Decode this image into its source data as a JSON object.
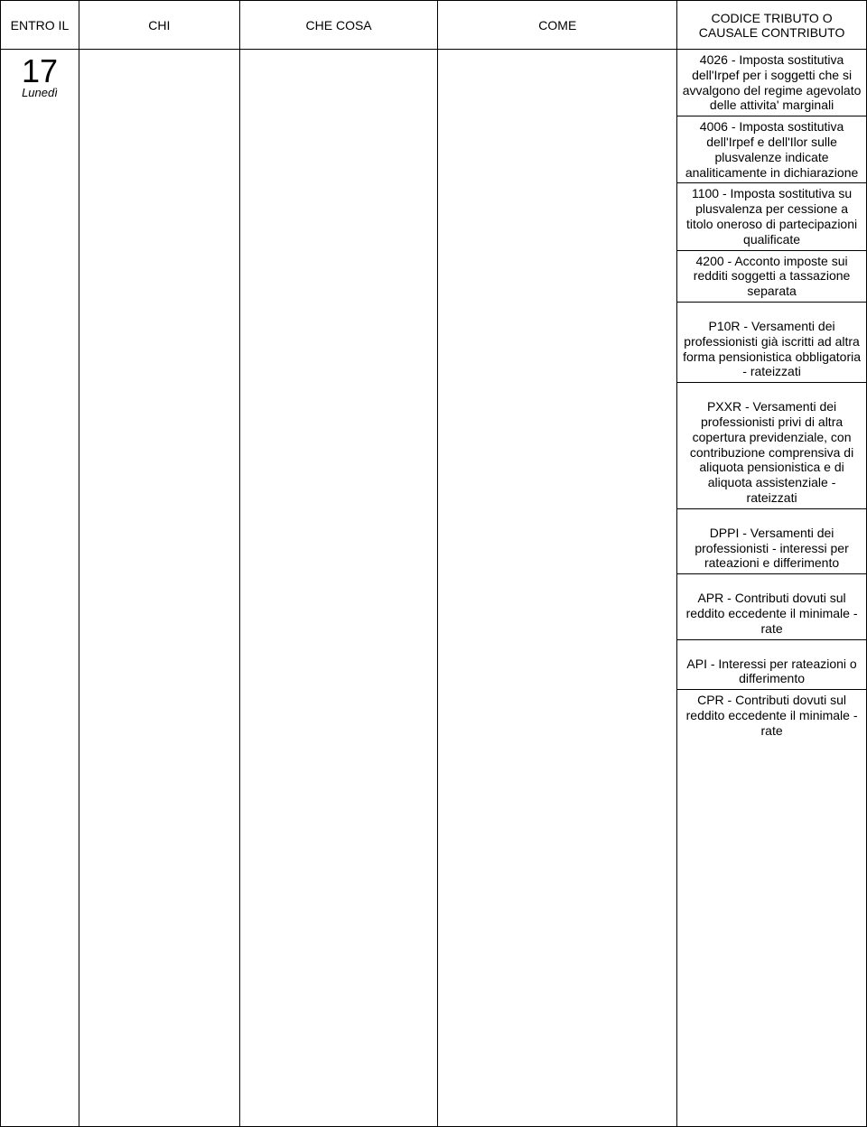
{
  "header": {
    "col1": "ENTRO IL",
    "col2": "CHI",
    "col3": "CHE COSA",
    "col4": "COME",
    "col5a": "CODICE TRIBUTO O",
    "col5b": "CAUSALE CONTRIBUTO"
  },
  "day": {
    "num": "17",
    "name": "Lunedì"
  },
  "codes": {
    "c1": "4026 - Imposta sostitutiva dell'Irpef per i soggetti che si avvalgono del regime agevolato delle attivita' marginali",
    "c2": "4006 - Imposta sostitutiva dell'Irpef e dell'Ilor sulle plusvalenze indicate analiticamente in dichiarazione",
    "c3": "1100 - Imposta sostitutiva su plusvalenza per cessione a titolo oneroso di partecipazioni qualificate",
    "c4": "4200 - Acconto imposte sui redditi soggetti a tassazione separata",
    "c5": "P10R - Versamenti dei professionisti già iscritti ad altra forma pensionistica obbligatoria - rateizzati",
    "c6": "PXXR - Versamenti dei professionisti privi di altra copertura previdenziale, con contribuzione comprensiva di aliquota pensionistica e di aliquota assistenziale - rateizzati",
    "c7": "DPPI - Versamenti dei professionisti - interessi per rateazioni e differimento",
    "c8": "APR - Contributi dovuti sul reddito eccedente il minimale - rate",
    "c9": "API - Interessi per rateazioni o differimento",
    "c10": "CPR - Contributi dovuti sul reddito eccedente il minimale - rate"
  }
}
